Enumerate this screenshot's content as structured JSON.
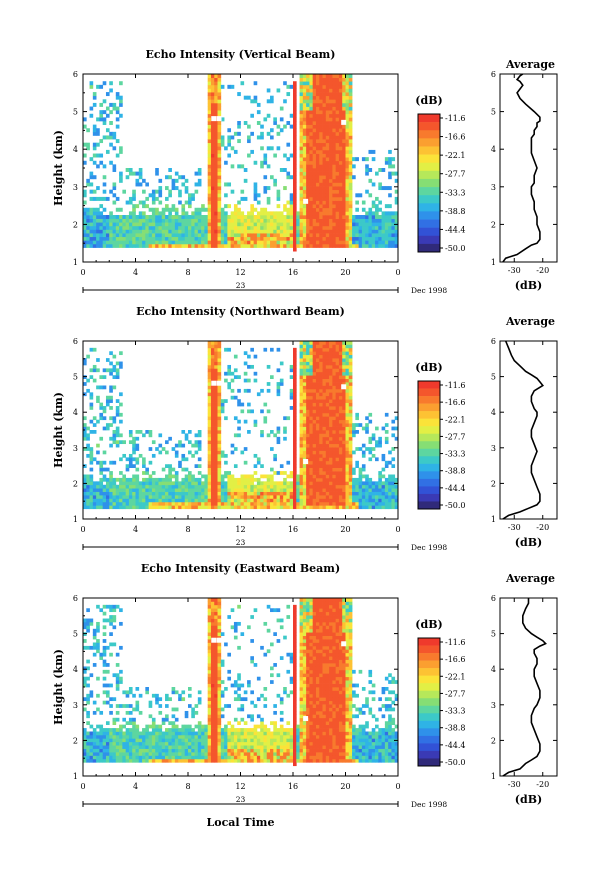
{
  "figure": {
    "xlabel": "Local Time",
    "date_label": "23",
    "date_right": "Dec 1998"
  },
  "colorbar": {
    "unit": "(dB)",
    "ticks": [
      "-11.6",
      "-16.6",
      "-22.1",
      "-27.7",
      "-33.3",
      "-38.8",
      "-44.4",
      "-50.0"
    ],
    "colors": [
      "#ef3a2c",
      "#f4562c",
      "#f87a2d",
      "#fb9f30",
      "#fdc233",
      "#fbe339",
      "#e2ef45",
      "#b6e85a",
      "#86de74",
      "#5dd6a0",
      "#3cc9c8",
      "#2fb3e6",
      "#2f91ea",
      "#3170e4",
      "#3252d6",
      "#3a3ab5",
      "#302a7a"
    ]
  },
  "chart_data": [
    {
      "type": "heatmap",
      "title": "Echo Intensity (Vertical Beam)",
      "ylabel": "Height (km)",
      "xlim": [
        0,
        24
      ],
      "ylim": [
        1,
        6
      ],
      "xticks": [
        "0",
        "4",
        "8",
        "12",
        "16",
        "20",
        "0"
      ],
      "yticks": [
        "1",
        "2",
        "3",
        "4",
        "5",
        "6"
      ],
      "value_range_dB": [
        -50.0,
        -11.6
      ],
      "features": [
        {
          "label": "rain column",
          "time_start": 9.5,
          "time_end": 10.5,
          "height_top": 6.0
        },
        {
          "label": "rain column",
          "time_start": 16.4,
          "time_end": 20.3,
          "height_top": 6.0
        },
        {
          "label": "low-level echo layer",
          "height_range": [
            1.4,
            2.2
          ]
        }
      ]
    },
    {
      "type": "heatmap",
      "title": "Echo Intensity (Northward Beam)",
      "ylabel": "Height (km)",
      "xlim": [
        0,
        24
      ],
      "ylim": [
        1,
        6
      ],
      "xticks": [
        "0",
        "4",
        "8",
        "12",
        "16",
        "20",
        "0"
      ],
      "yticks": [
        "1",
        "2",
        "3",
        "4",
        "5",
        "6"
      ],
      "value_range_dB": [
        -50.0,
        -11.6
      ],
      "features": [
        {
          "label": "rain column",
          "time_start": 9.5,
          "time_end": 10.5,
          "height_top": 6.0
        },
        {
          "label": "rain column",
          "time_start": 16.4,
          "time_end": 20.3,
          "height_top": 6.0
        },
        {
          "label": "low-level echo layer",
          "height_range": [
            1.3,
            2.0
          ]
        }
      ]
    },
    {
      "type": "heatmap",
      "title": "Echo Intensity (Eastward Beam)",
      "ylabel": "Height (km)",
      "xlim": [
        0,
        24
      ],
      "ylim": [
        1,
        6
      ],
      "xticks": [
        "0",
        "4",
        "8",
        "12",
        "16",
        "20",
        "0"
      ],
      "yticks": [
        "1",
        "2",
        "3",
        "4",
        "5",
        "6"
      ],
      "value_range_dB": [
        -50.0,
        -11.6
      ],
      "features": [
        {
          "label": "rain column",
          "time_start": 9.5,
          "time_end": 10.5,
          "height_top": 6.0
        },
        {
          "label": "rain column",
          "time_start": 16.4,
          "time_end": 20.3,
          "height_top": 6.0
        },
        {
          "label": "low-level echo layer",
          "height_range": [
            1.4,
            2.2
          ]
        }
      ]
    },
    {
      "type": "line",
      "title": "Average",
      "xlabel": "(dB)",
      "ylim": [
        1,
        6
      ],
      "xticks": [
        "-30",
        "-20"
      ],
      "yticks": [
        "1",
        "2",
        "3",
        "4",
        "5",
        "6"
      ],
      "x": [
        -34,
        -33,
        -29,
        -26,
        -24,
        -22,
        -21,
        -21,
        -22,
        -22,
        -23,
        -23,
        -24,
        -24,
        -23,
        -23,
        -22,
        -23,
        -24,
        -24,
        -24,
        -24,
        -23,
        -23,
        -22,
        -22,
        -21,
        -21,
        -23,
        -26,
        -28,
        -29,
        -28,
        -27,
        -28,
        -29,
        -28,
        -27
      ],
      "y": [
        1.0,
        1.1,
        1.2,
        1.35,
        1.45,
        1.5,
        1.6,
        1.8,
        2.0,
        2.2,
        2.4,
        2.6,
        2.8,
        3.0,
        3.1,
        3.3,
        3.5,
        3.7,
        3.9,
        4.0,
        4.1,
        4.3,
        4.4,
        4.5,
        4.6,
        4.7,
        4.75,
        4.85,
        5.0,
        5.2,
        5.35,
        5.5,
        5.6,
        5.7,
        5.8,
        5.85,
        5.95,
        6.0
      ]
    },
    {
      "type": "line",
      "title": "Average",
      "xlabel": "(dB)",
      "ylim": [
        1,
        6
      ],
      "xticks": [
        "-30",
        "-20"
      ],
      "yticks": [
        "1",
        "2",
        "3",
        "4",
        "5",
        "6"
      ],
      "x": [
        -34,
        -32,
        -28,
        -25,
        -22,
        -21,
        -21,
        -22,
        -23,
        -24,
        -24,
        -23,
        -22,
        -23,
        -24,
        -24,
        -23,
        -22,
        -22,
        -23,
        -24,
        -24,
        -23,
        -21,
        -20,
        -21,
        -22,
        -24,
        -26,
        -28,
        -30,
        -31,
        -32,
        -33
      ],
      "y": [
        1.0,
        1.1,
        1.2,
        1.3,
        1.4,
        1.5,
        1.7,
        1.9,
        2.1,
        2.3,
        2.5,
        2.7,
        2.9,
        3.1,
        3.3,
        3.5,
        3.7,
        3.9,
        4.0,
        4.1,
        4.3,
        4.45,
        4.6,
        4.7,
        4.75,
        4.85,
        4.95,
        5.05,
        5.15,
        5.3,
        5.45,
        5.6,
        5.8,
        6.0
      ]
    },
    {
      "type": "line",
      "title": "Average",
      "xlabel": "(dB)",
      "ylim": [
        1,
        6
      ],
      "xticks": [
        "-30",
        "-20"
      ],
      "yticks": [
        "1",
        "2",
        "3",
        "4",
        "5",
        "6"
      ],
      "x": [
        -34,
        -32,
        -28,
        -26,
        -24,
        -22,
        -21,
        -21,
        -22,
        -23,
        -24,
        -24,
        -23,
        -22,
        -21,
        -21,
        -22,
        -23,
        -23,
        -22,
        -22,
        -23,
        -23,
        -21,
        -19,
        -20,
        -22,
        -24,
        -26,
        -27,
        -27,
        -26,
        -25,
        -25
      ],
      "y": [
        1.0,
        1.1,
        1.2,
        1.35,
        1.45,
        1.55,
        1.7,
        1.9,
        2.1,
        2.3,
        2.5,
        2.7,
        2.9,
        3.0,
        3.2,
        3.4,
        3.6,
        3.8,
        4.0,
        4.15,
        4.3,
        4.45,
        4.55,
        4.65,
        4.72,
        4.8,
        4.9,
        5.0,
        5.15,
        5.3,
        5.5,
        5.7,
        5.85,
        6.0
      ]
    }
  ]
}
